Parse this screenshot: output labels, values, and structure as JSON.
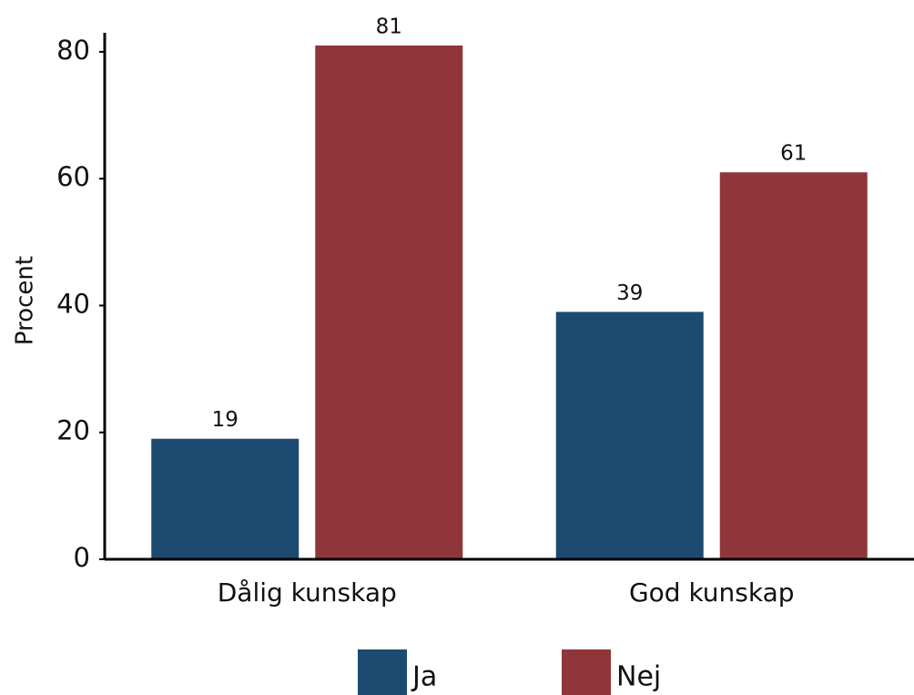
{
  "chart_data": {
    "type": "bar",
    "y_label": "Procent",
    "categories": [
      "Dålig kunskap",
      "God kunskap"
    ],
    "series": [
      {
        "name": "Ja",
        "color": "#1c4a70",
        "values": [
          19,
          39
        ]
      },
      {
        "name": "Nej",
        "color": "#90363a",
        "values": [
          81,
          61
        ]
      }
    ],
    "ylim": [
      0,
      83
    ],
    "yticks": [
      0,
      20,
      40,
      60,
      80
    ],
    "legend": "bottom"
  }
}
